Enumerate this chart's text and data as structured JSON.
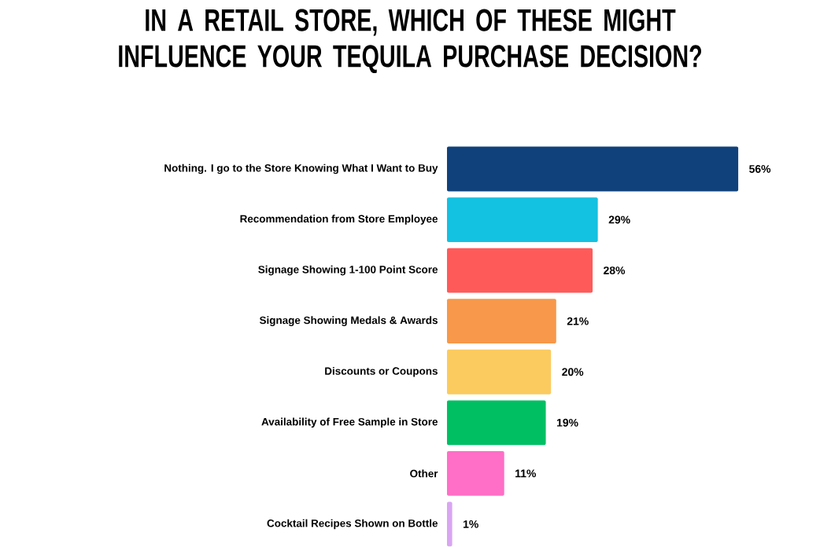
{
  "chart_data": {
    "type": "bar",
    "orientation": "horizontal",
    "title": "IN A RETAIL STORE, WHICH OF THESE MIGHT INFLUENCE YOUR TEQUILA PURCHASE DECISION?",
    "categories": [
      "Nothing. I go to the Store Knowing What I Want to Buy",
      "Recommendation from Store Employee",
      "Signage Showing 1-100 Point Score",
      "Signage Showing Medals & Awards",
      "Discounts or Coupons",
      "Availability of Free Sample in Store",
      "Other",
      "Cocktail Recipes Shown on Bottle"
    ],
    "values": [
      56,
      29,
      28,
      21,
      20,
      19,
      11,
      1
    ],
    "value_labels": [
      "56%",
      "29%",
      "28%",
      "21%",
      "20%",
      "19%",
      "11%",
      "1%"
    ],
    "colors": [
      "#11417b",
      "#13c1e0",
      "#ff5a5a",
      "#f7984a",
      "#fbcb5f",
      "#00bf63",
      "#ff6ec7",
      "#d9a6f2"
    ]
  }
}
